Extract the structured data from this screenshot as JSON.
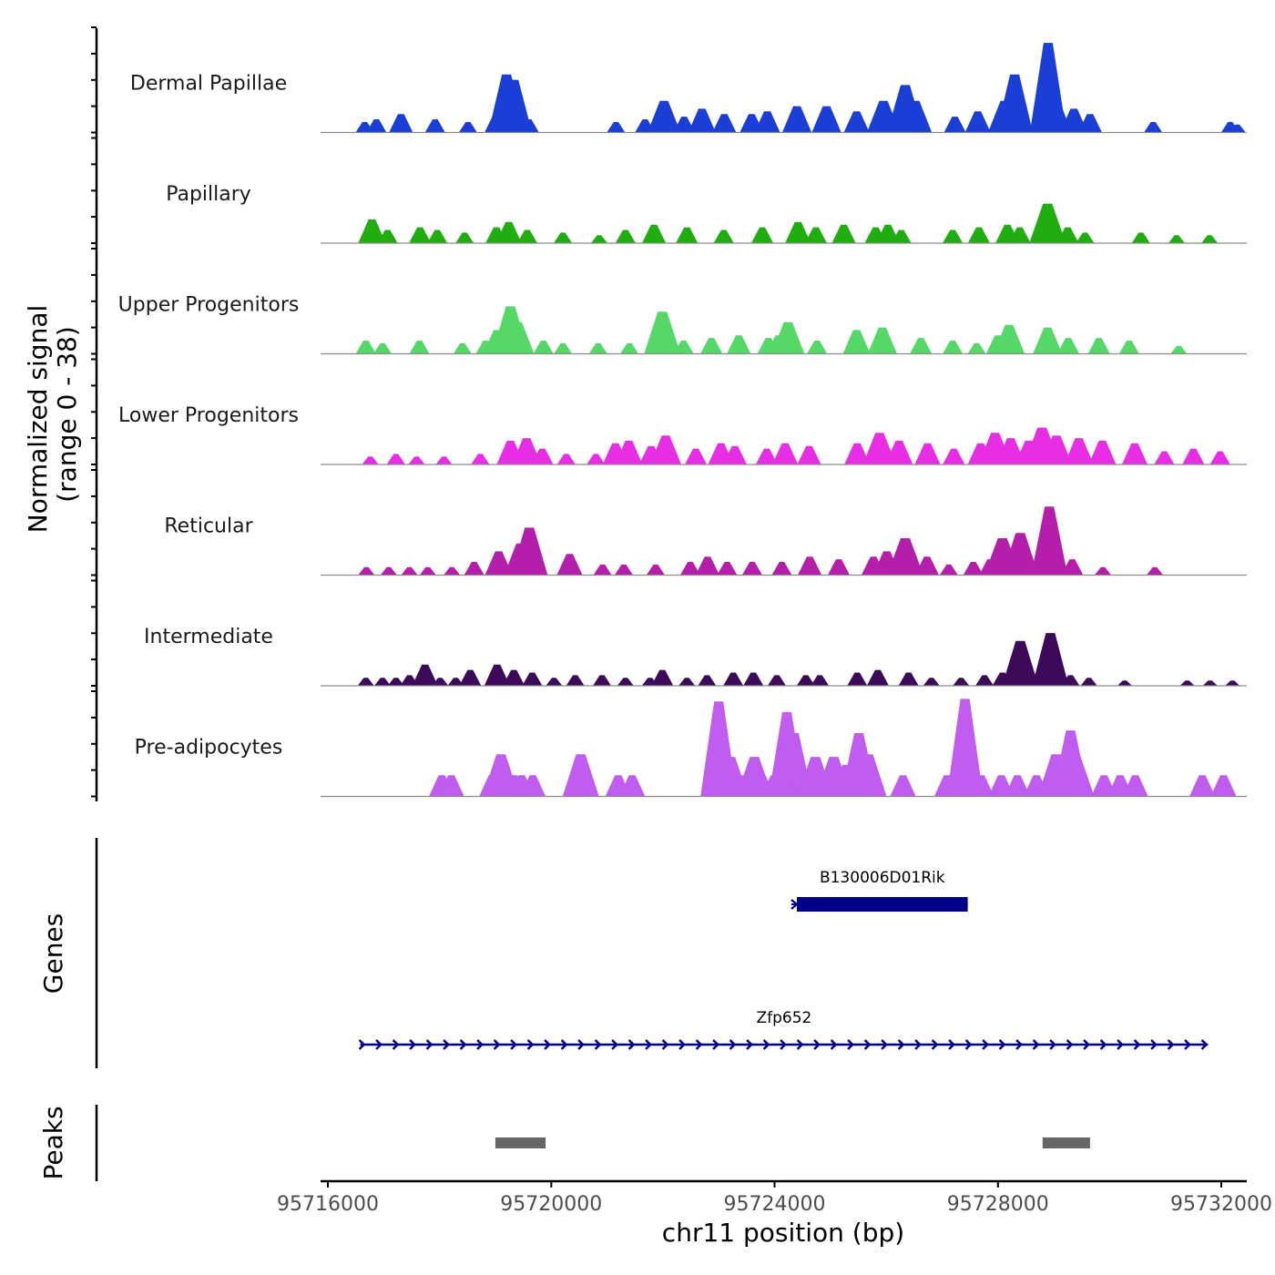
{
  "chart_data": {
    "type": "area",
    "region": {
      "chromosome": "chr11",
      "start": 95716000,
      "end": 95732500
    },
    "coverage": {
      "ylabel_line1": "Normalized signal",
      "ylabel_line2": "(range 0 - 38)",
      "ylim": [
        0,
        38
      ],
      "tracks": [
        {
          "name": "Dermal Papillae",
          "color": "#1a3ed6",
          "peaks": [
            [
              95716660,
              4
            ],
            [
              95716870,
              5
            ],
            [
              95717310,
              7
            ],
            [
              95717920,
              5
            ],
            [
              95718510,
              4
            ],
            [
              95719020,
              7
            ],
            [
              95719200,
              22
            ],
            [
              95719330,
              20
            ],
            [
              95719600,
              5
            ],
            [
              95721160,
              4
            ],
            [
              95721680,
              5
            ],
            [
              95722020,
              12
            ],
            [
              95722380,
              6
            ],
            [
              95722700,
              9
            ],
            [
              95723100,
              7
            ],
            [
              95723590,
              7
            ],
            [
              95723870,
              8
            ],
            [
              95724400,
              10
            ],
            [
              95724930,
              10
            ],
            [
              95725470,
              8
            ],
            [
              95725950,
              12
            ],
            [
              95726340,
              18
            ],
            [
              95726520,
              12
            ],
            [
              95727230,
              6
            ],
            [
              95727640,
              8
            ],
            [
              95728120,
              12
            ],
            [
              95728300,
              22
            ],
            [
              95728900,
              34
            ],
            [
              95728990,
              14
            ],
            [
              95729360,
              9
            ],
            [
              95729650,
              7
            ],
            [
              95730780,
              4
            ],
            [
              95732160,
              4
            ],
            [
              95732290,
              3
            ]
          ]
        },
        {
          "name": "Papillary",
          "color": "#1fad10",
          "peaks": [
            [
              95716790,
              9
            ],
            [
              95717070,
              5
            ],
            [
              95717650,
              6
            ],
            [
              95717960,
              5
            ],
            [
              95718450,
              4
            ],
            [
              95719020,
              6
            ],
            [
              95719240,
              8
            ],
            [
              95719570,
              5
            ],
            [
              95720210,
              4
            ],
            [
              95720860,
              3
            ],
            [
              95721330,
              5
            ],
            [
              95721840,
              7
            ],
            [
              95722430,
              6
            ],
            [
              95723090,
              5
            ],
            [
              95723780,
              6
            ],
            [
              95724420,
              8
            ],
            [
              95724740,
              6
            ],
            [
              95725240,
              7
            ],
            [
              95725810,
              6
            ],
            [
              95726030,
              7
            ],
            [
              95726270,
              5
            ],
            [
              95727190,
              5
            ],
            [
              95727660,
              6
            ],
            [
              95728170,
              7
            ],
            [
              95728390,
              6
            ],
            [
              95728890,
              15
            ],
            [
              95729250,
              6
            ],
            [
              95729560,
              4
            ],
            [
              95730560,
              4
            ],
            [
              95731200,
              3
            ],
            [
              95731790,
              3
            ]
          ]
        },
        {
          "name": "Upper Progenitors",
          "color": "#55d868",
          "peaks": [
            [
              95716680,
              5
            ],
            [
              95716980,
              4
            ],
            [
              95717640,
              5
            ],
            [
              95718410,
              4
            ],
            [
              95718830,
              5
            ],
            [
              95719030,
              9
            ],
            [
              95719270,
              18
            ],
            [
              95719400,
              12
            ],
            [
              95719860,
              5
            ],
            [
              95720210,
              4
            ],
            [
              95720840,
              4
            ],
            [
              95721400,
              4
            ],
            [
              95721990,
              16
            ],
            [
              95722370,
              5
            ],
            [
              95722870,
              6
            ],
            [
              95723360,
              7
            ],
            [
              95723890,
              6
            ],
            [
              95724070,
              7
            ],
            [
              95724240,
              12
            ],
            [
              95724760,
              5
            ],
            [
              95725470,
              9
            ],
            [
              95725930,
              10
            ],
            [
              95726620,
              6
            ],
            [
              95727190,
              5
            ],
            [
              95727620,
              4
            ],
            [
              95728000,
              7
            ],
            [
              95728200,
              11
            ],
            [
              95728890,
              10
            ],
            [
              95729260,
              6
            ],
            [
              95729810,
              6
            ],
            [
              95730350,
              5
            ],
            [
              95731240,
              3
            ]
          ]
        },
        {
          "name": "Lower Progenitors",
          "color": "#e82ee5",
          "peaks": [
            [
              95716760,
              3
            ],
            [
              95717220,
              4
            ],
            [
              95717590,
              3
            ],
            [
              95718080,
              3
            ],
            [
              95718730,
              4
            ],
            [
              95719270,
              9
            ],
            [
              95719560,
              10
            ],
            [
              95719840,
              6
            ],
            [
              95720270,
              4
            ],
            [
              95720800,
              4
            ],
            [
              95721150,
              8
            ],
            [
              95721390,
              9
            ],
            [
              95721790,
              7
            ],
            [
              95722050,
              11
            ],
            [
              95722590,
              6
            ],
            [
              95723040,
              8
            ],
            [
              95723290,
              7
            ],
            [
              95723860,
              6
            ],
            [
              95724190,
              8
            ],
            [
              95724620,
              7
            ],
            [
              95725480,
              8
            ],
            [
              95725880,
              12
            ],
            [
              95726230,
              9
            ],
            [
              95726740,
              8
            ],
            [
              95727210,
              6
            ],
            [
              95727690,
              8
            ],
            [
              95727950,
              12
            ],
            [
              95728230,
              10
            ],
            [
              95728550,
              9
            ],
            [
              95728790,
              14
            ],
            [
              95729050,
              11
            ],
            [
              95729450,
              10
            ],
            [
              95729870,
              9
            ],
            [
              95730450,
              8
            ],
            [
              95730980,
              5
            ],
            [
              95731500,
              6
            ],
            [
              95731980,
              5
            ]
          ]
        },
        {
          "name": "Reticular",
          "color": "#b41eaa",
          "peaks": [
            [
              95716690,
              3
            ],
            [
              95717090,
              3
            ],
            [
              95717460,
              3
            ],
            [
              95717790,
              3
            ],
            [
              95718220,
              3
            ],
            [
              95718620,
              5
            ],
            [
              95719060,
              9
            ],
            [
              95719450,
              12
            ],
            [
              95719610,
              18
            ],
            [
              95720330,
              8
            ],
            [
              95720920,
              4
            ],
            [
              95721300,
              4
            ],
            [
              95721870,
              4
            ],
            [
              95722490,
              5
            ],
            [
              95722800,
              7
            ],
            [
              95723150,
              5
            ],
            [
              95723600,
              5
            ],
            [
              95724130,
              5
            ],
            [
              95724630,
              7
            ],
            [
              95725150,
              6
            ],
            [
              95725770,
              7
            ],
            [
              95726010,
              9
            ],
            [
              95726340,
              14
            ],
            [
              95726730,
              7
            ],
            [
              95727120,
              4
            ],
            [
              95727560,
              5
            ],
            [
              95727860,
              6
            ],
            [
              95728080,
              14
            ],
            [
              95728400,
              16
            ],
            [
              95728920,
              26
            ],
            [
              95729330,
              6
            ],
            [
              95729880,
              3
            ],
            [
              95730810,
              3
            ]
          ]
        },
        {
          "name": "Intermediate",
          "color": "#3d0a5a",
          "peaks": [
            [
              95716680,
              3
            ],
            [
              95716980,
              3
            ],
            [
              95717220,
              3
            ],
            [
              95717460,
              4
            ],
            [
              95717740,
              8
            ],
            [
              95718010,
              3
            ],
            [
              95718290,
              3
            ],
            [
              95718550,
              6
            ],
            [
              95719030,
              8
            ],
            [
              95719330,
              6
            ],
            [
              95719660,
              5
            ],
            [
              95720050,
              3
            ],
            [
              95720430,
              4
            ],
            [
              95720910,
              4
            ],
            [
              95721330,
              3
            ],
            [
              95721770,
              3
            ],
            [
              95721990,
              6
            ],
            [
              95722430,
              3
            ],
            [
              95722790,
              4
            ],
            [
              95723260,
              5
            ],
            [
              95723620,
              5
            ],
            [
              95724040,
              4
            ],
            [
              95724560,
              4
            ],
            [
              95724810,
              4
            ],
            [
              95725480,
              5
            ],
            [
              95725850,
              6
            ],
            [
              95726400,
              5
            ],
            [
              95726810,
              3
            ],
            [
              95727340,
              3
            ],
            [
              95727760,
              4
            ],
            [
              95728080,
              5
            ],
            [
              95728400,
              17
            ],
            [
              95728940,
              20
            ],
            [
              95729300,
              4
            ],
            [
              95729630,
              3
            ],
            [
              95730270,
              2
            ],
            [
              95731390,
              2
            ],
            [
              95731800,
              2
            ],
            [
              95732200,
              2
            ]
          ]
        },
        {
          "name": "Pre-adipocytes",
          "color": "#c05cf0",
          "peaks": [
            [
              95718040,
              8
            ],
            [
              95718210,
              8
            ],
            [
              95718940,
              8
            ],
            [
              95719100,
              16
            ],
            [
              95719330,
              8
            ],
            [
              95719470,
              8
            ],
            [
              95719670,
              8
            ],
            [
              95720530,
              16
            ],
            [
              95721200,
              8
            ],
            [
              95721450,
              8
            ],
            [
              95723000,
              36
            ],
            [
              95723210,
              15
            ],
            [
              95723400,
              8
            ],
            [
              95723640,
              15
            ],
            [
              95723780,
              8
            ],
            [
              95723990,
              8
            ],
            [
              95724220,
              32
            ],
            [
              95724350,
              24
            ],
            [
              95724450,
              8
            ],
            [
              95724730,
              15
            ],
            [
              95724880,
              8
            ],
            [
              95725060,
              15
            ],
            [
              95725290,
              12
            ],
            [
              95725510,
              24
            ],
            [
              95725680,
              16
            ],
            [
              95726300,
              8
            ],
            [
              95727090,
              8
            ],
            [
              95727410,
              37
            ],
            [
              95727700,
              8
            ],
            [
              95728060,
              8
            ],
            [
              95728350,
              8
            ],
            [
              95728690,
              8
            ],
            [
              95729040,
              16
            ],
            [
              95729300,
              25
            ],
            [
              95729400,
              15
            ],
            [
              95729900,
              8
            ],
            [
              95730190,
              8
            ],
            [
              95730460,
              8
            ],
            [
              95731660,
              8
            ],
            [
              95732040,
              8
            ]
          ]
        }
      ]
    },
    "genes": {
      "label": "Genes",
      "color": "#00008b",
      "items": [
        {
          "name": "B130006D01Rik",
          "start": 95724400,
          "end": 95727460,
          "strand": "+",
          "style": "box"
        },
        {
          "name": "Zfp652",
          "start": 95716580,
          "end": 95731760,
          "strand": "+",
          "style": "arrows"
        }
      ]
    },
    "peaks": {
      "label": "Peaks",
      "color": "#666666",
      "regions": [
        [
          95719000,
          95719900
        ],
        [
          95728800,
          95729650
        ]
      ]
    },
    "x_axis": {
      "label": "chr11 position (bp)",
      "ticks": [
        95716000,
        95720000,
        95724000,
        95728000,
        95732000
      ]
    }
  }
}
